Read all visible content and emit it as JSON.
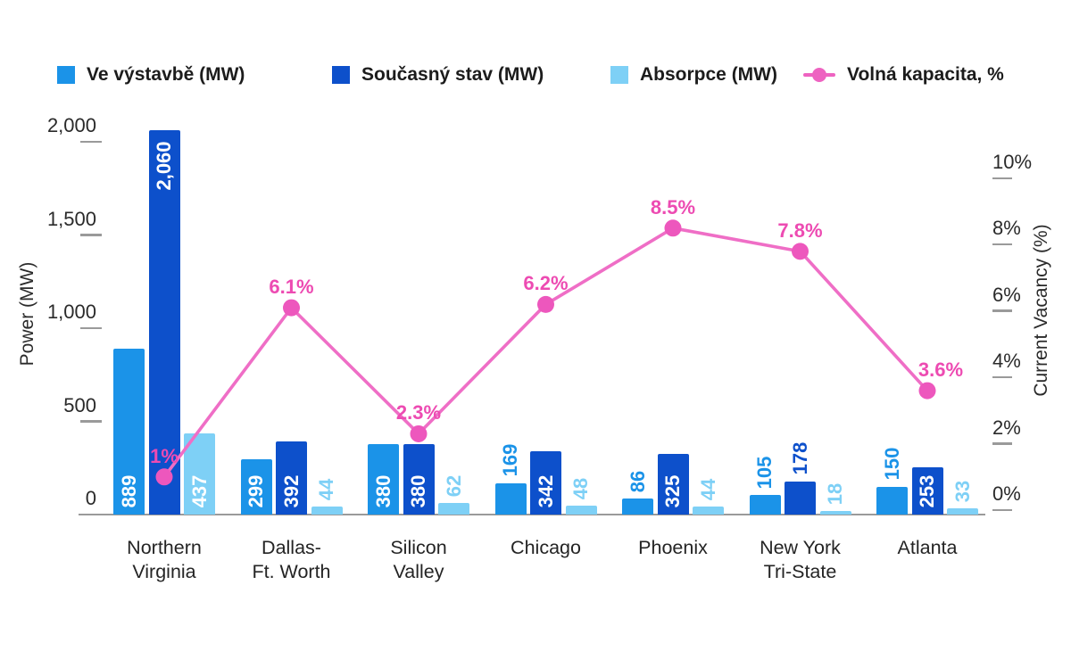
{
  "legend": {
    "items": [
      {
        "label": "Ve výstavbě (MW)",
        "color": "#1b93e8",
        "marker": "square"
      },
      {
        "label": "Současný stav (MW)",
        "color": "#0d50cb",
        "marker": "square"
      },
      {
        "label": "Absorpce (MW)",
        "color": "#7ed0f6",
        "marker": "square"
      },
      {
        "label": "Volná kapacita, %",
        "color": "#ee63c1",
        "marker": "line-dot"
      }
    ]
  },
  "chart_data": {
    "type": "bar",
    "subtype": "grouped-bars-with-line-overlay",
    "categories": [
      [
        "Northern",
        "Virginia"
      ],
      [
        "Dallas-",
        "Ft. Worth"
      ],
      [
        "Silicon",
        "Valley"
      ],
      [
        "Chicago"
      ],
      [
        "Phoenix"
      ],
      [
        "New York",
        "Tri-State"
      ],
      [
        "Atlanta"
      ]
    ],
    "series": [
      {
        "name": "Ve výstavbě (MW)",
        "color": "#1b93e8",
        "values": [
          889,
          299,
          380,
          169,
          86,
          105,
          150
        ],
        "labels": [
          "889",
          "299",
          "380",
          "169",
          "86",
          "105",
          "150"
        ]
      },
      {
        "name": "Současný stav (MW)",
        "color": "#0d50cb",
        "values": [
          2060,
          392,
          380,
          342,
          325,
          178,
          253
        ],
        "labels": [
          "2,060",
          "392",
          "380",
          "342",
          "325",
          "178",
          "253"
        ]
      },
      {
        "name": "Absorpce (MW)",
        "color": "#7ed0f6",
        "values": [
          437,
          44,
          62,
          48,
          44,
          18,
          33
        ],
        "labels": [
          "437",
          "44",
          "62",
          "48",
          "44",
          "18",
          "33"
        ]
      }
    ],
    "line_series": {
      "name": "Volná kapacita, %",
      "line_color": "#ef6ec6",
      "marker_color": "#ed57bd",
      "label_color": "#ed4bb2",
      "values": [
        1,
        6.1,
        2.3,
        6.2,
        8.5,
        7.8,
        3.6
      ],
      "labels": [
        "1%",
        "6.1%",
        "2.3%",
        "6.2%",
        "8.5%",
        "7.8%",
        "3.6%"
      ],
      "label_dx": [
        0,
        0,
        0,
        0,
        0,
        0,
        15
      ]
    },
    "left_axis": {
      "title": "Power (MW)",
      "ticks": [
        "2,000",
        "1,500",
        "1,000",
        "500",
        "0"
      ],
      "tick_values": [
        2000,
        1500,
        1000,
        500,
        0
      ],
      "range": [
        0,
        2000
      ],
      "grid": false
    },
    "right_axis": {
      "title": "Current Vacancy (%)",
      "ticks": [
        "10%",
        "8%",
        "6%",
        "4%",
        "2%",
        "0%"
      ],
      "tick_values": [
        10,
        8,
        6,
        4,
        2,
        0
      ],
      "range": [
        0,
        10
      ],
      "grid": false
    },
    "legend_position": "top"
  }
}
